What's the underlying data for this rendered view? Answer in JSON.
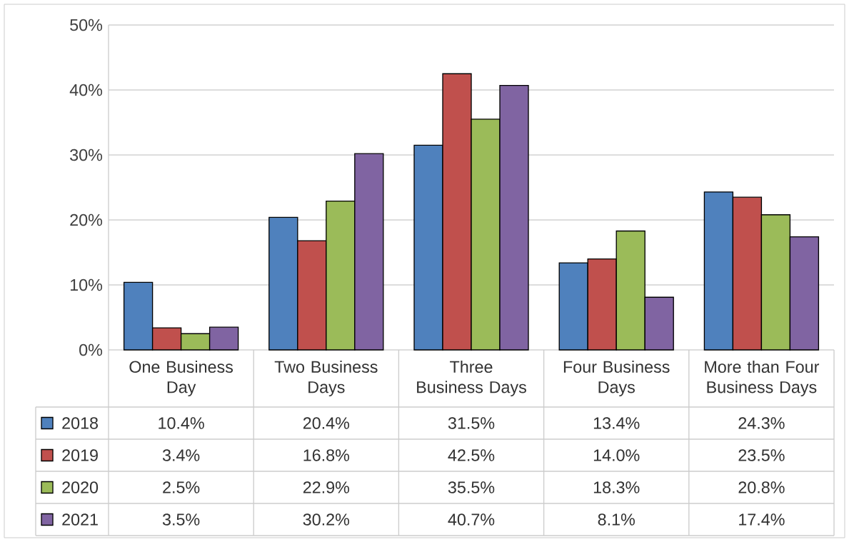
{
  "chart_data": {
    "type": "bar",
    "categories": [
      "One Business Day",
      "Two Business Days",
      "Three Business Days",
      "Four Business Days",
      "More than Four Business Days"
    ],
    "series": [
      {
        "name": "2018",
        "color": "#4f81bd",
        "values": [
          10.4,
          20.4,
          31.5,
          13.4,
          24.3
        ],
        "value_labels": [
          "10.4%",
          "20.4%",
          "31.5%",
          "13.4%",
          "24.3%"
        ]
      },
      {
        "name": "2019",
        "color": "#c0504d",
        "values": [
          3.4,
          16.8,
          42.5,
          14.0,
          23.5
        ],
        "value_labels": [
          "3.4%",
          "16.8%",
          "42.5%",
          "14.0%",
          "23.5%"
        ]
      },
      {
        "name": "2020",
        "color": "#9bbb59",
        "values": [
          2.5,
          22.9,
          35.5,
          18.3,
          20.8
        ],
        "value_labels": [
          "2.5%",
          "22.9%",
          "35.5%",
          "18.3%",
          "20.8%"
        ]
      },
      {
        "name": "2021",
        "color": "#8064a2",
        "values": [
          3.5,
          30.2,
          40.7,
          8.1,
          17.4
        ],
        "value_labels": [
          "3.5%",
          "30.2%",
          "40.7%",
          "8.1%",
          "17.4%"
        ]
      }
    ],
    "ylim": [
      0,
      50
    ],
    "yticks": [
      {
        "value": 0,
        "label": "0%"
      },
      {
        "value": 10,
        "label": "10%"
      },
      {
        "value": 20,
        "label": "20%"
      },
      {
        "value": 30,
        "label": "30%"
      },
      {
        "value": 40,
        "label": "40%"
      },
      {
        "value": 50,
        "label": "50%"
      }
    ],
    "grid": "y",
    "legend": "bottom"
  }
}
